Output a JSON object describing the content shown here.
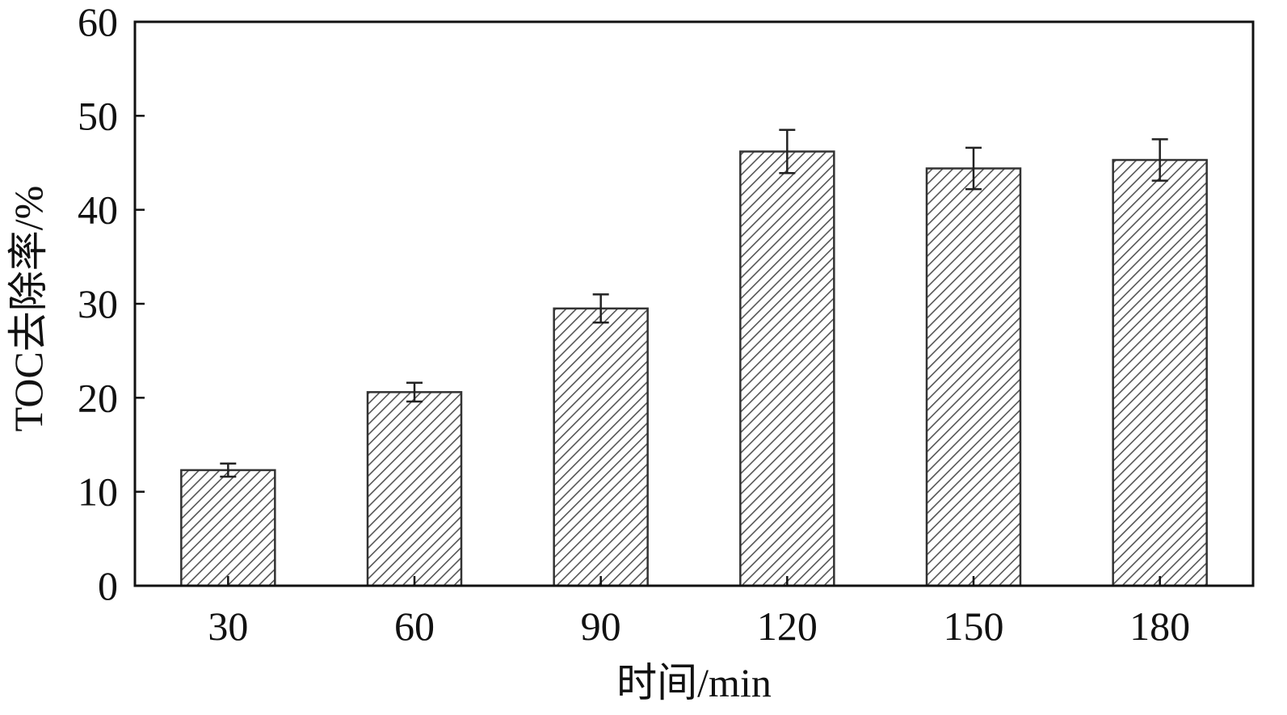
{
  "chart_data": {
    "type": "bar",
    "xlabel": "时间/min",
    "ylabel": "TOC去除率/%",
    "categories": [
      "30",
      "60",
      "90",
      "120",
      "150",
      "180"
    ],
    "values": [
      12.3,
      20.6,
      29.5,
      46.2,
      44.4,
      45.3
    ],
    "errors": [
      0.7,
      1.0,
      1.5,
      2.3,
      2.2,
      2.2
    ],
    "ylim": [
      0,
      60
    ],
    "yticks": [
      "0",
      "10",
      "20",
      "30",
      "40",
      "50",
      "60"
    ],
    "grid": false,
    "bar_fill": "hatched",
    "colors": {
      "bar_stroke": "#333333",
      "hatch": "#555555",
      "axis": "#111111"
    }
  }
}
